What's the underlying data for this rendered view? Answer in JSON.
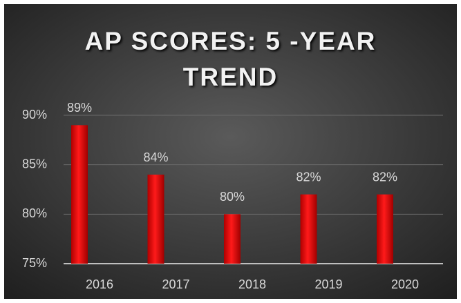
{
  "chart_data": {
    "type": "bar",
    "title": "AP SCORES: 5 -YEAR TREND",
    "categories": [
      "2016",
      "2017",
      "2018",
      "2019",
      "2020"
    ],
    "values": [
      89,
      84,
      80,
      82,
      82
    ],
    "value_labels": [
      "89%",
      "84%",
      "80%",
      "82%",
      "82%"
    ],
    "color": "#ff0000",
    "ylim": [
      75,
      90
    ],
    "yticks": [
      {
        "value": 75,
        "label": "75%"
      },
      {
        "value": 80,
        "label": "80%"
      },
      {
        "value": 85,
        "label": "85%"
      },
      {
        "value": 90,
        "label": "90%"
      }
    ],
    "grid": true
  }
}
